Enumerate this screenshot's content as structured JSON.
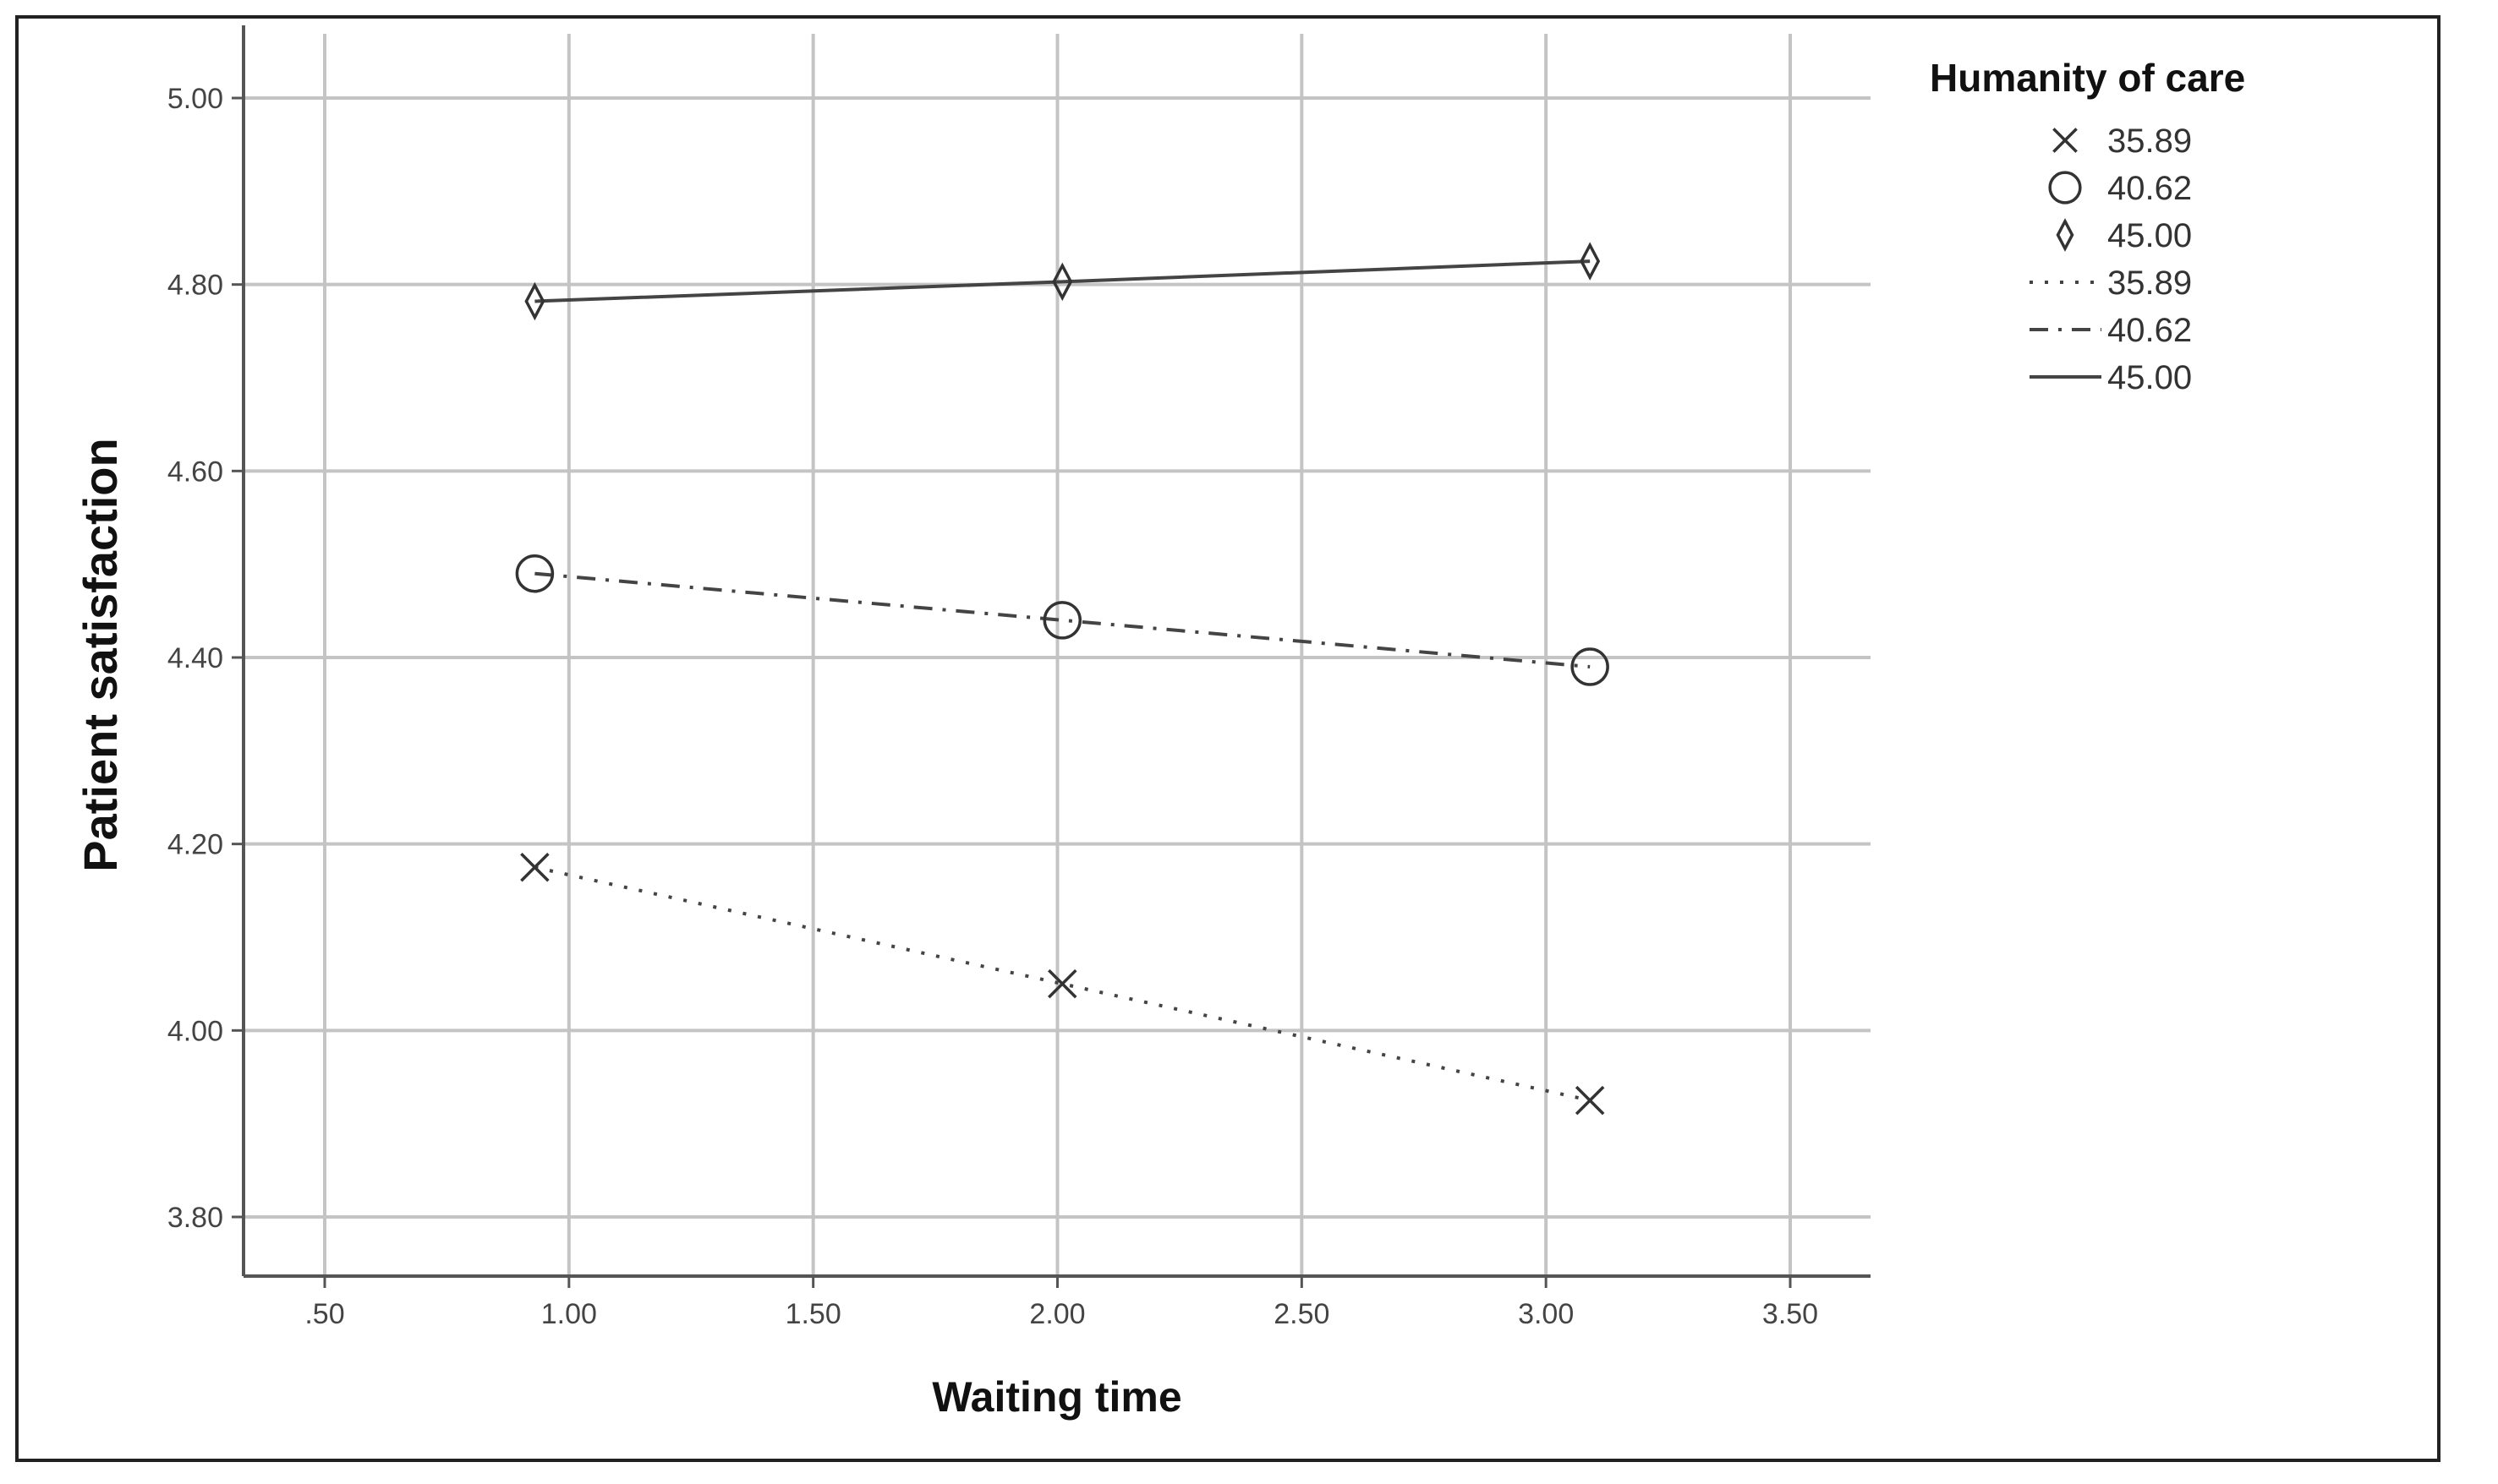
{
  "chart_data": {
    "type": "line",
    "xlabel": "Waiting time",
    "ylabel": "Patient satisfaction",
    "xlim": [
      0.33,
      3.65
    ],
    "ylim": [
      3.74,
      5.07
    ],
    "x_ticks": [
      0.5,
      1.0,
      1.5,
      2.0,
      2.5,
      3.0,
      3.5
    ],
    "x_tick_labels": [
      ".50",
      "1.00",
      "1.50",
      "2.00",
      "2.50",
      "3.00",
      "3.50"
    ],
    "y_ticks": [
      3.8,
      4.0,
      4.2,
      4.4,
      4.6,
      4.8,
      5.0
    ],
    "y_tick_labels": [
      "3.80",
      "4.00",
      "4.20",
      "4.40",
      "4.60",
      "4.80",
      "5.00"
    ],
    "grid": true,
    "legend_title": "Humanity of care",
    "legend_position": "top-right, outside plot",
    "legend_entries": [
      {
        "label": "35.89",
        "kind": "marker",
        "marker": "x"
      },
      {
        "label": "40.62",
        "kind": "marker",
        "marker": "circle"
      },
      {
        "label": "45.00",
        "kind": "marker",
        "marker": "diamond"
      },
      {
        "label": "35.89",
        "kind": "line",
        "style": "dotted"
      },
      {
        "label": "40.62",
        "kind": "line",
        "style": "dash-dot"
      },
      {
        "label": "45.00",
        "kind": "line",
        "style": "solid"
      }
    ],
    "series": [
      {
        "name": "35.89",
        "marker": "x",
        "line_style": "dotted",
        "x": [
          0.93,
          2.01,
          3.09
        ],
        "y": [
          4.175,
          4.05,
          3.925
        ]
      },
      {
        "name": "40.62",
        "marker": "circle",
        "line_style": "dash-dot",
        "x": [
          0.93,
          2.01,
          3.09
        ],
        "y": [
          4.49,
          4.44,
          4.39
        ]
      },
      {
        "name": "45.00",
        "marker": "diamond",
        "line_style": "solid",
        "x": [
          0.93,
          2.01,
          3.09
        ],
        "y": [
          4.782,
          4.803,
          4.825
        ]
      }
    ],
    "colors": {
      "grid": "#c4c4c4",
      "axis": "#555555",
      "series": "#444444",
      "marker": "#333333"
    }
  }
}
